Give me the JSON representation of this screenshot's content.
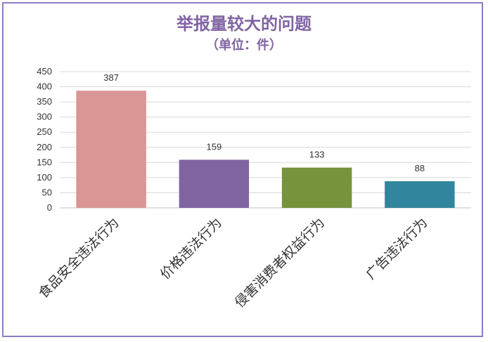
{
  "chart_data": {
    "type": "bar",
    "title": "举报量较大的问题",
    "subtitle": "（单位：件）",
    "categories": [
      "食品安全违法行为",
      "价格违法行为",
      "侵害消费者权益行为",
      "广告违法行为"
    ],
    "values": [
      387,
      159,
      133,
      88
    ],
    "colors": [
      "#d99694",
      "#8064a2",
      "#77933c",
      "#31859c"
    ],
    "ylim": [
      0,
      450
    ],
    "yticks": [
      0,
      50,
      100,
      150,
      200,
      250,
      300,
      350,
      400,
      450
    ],
    "grid": true,
    "xlabel": "",
    "ylabel": ""
  }
}
